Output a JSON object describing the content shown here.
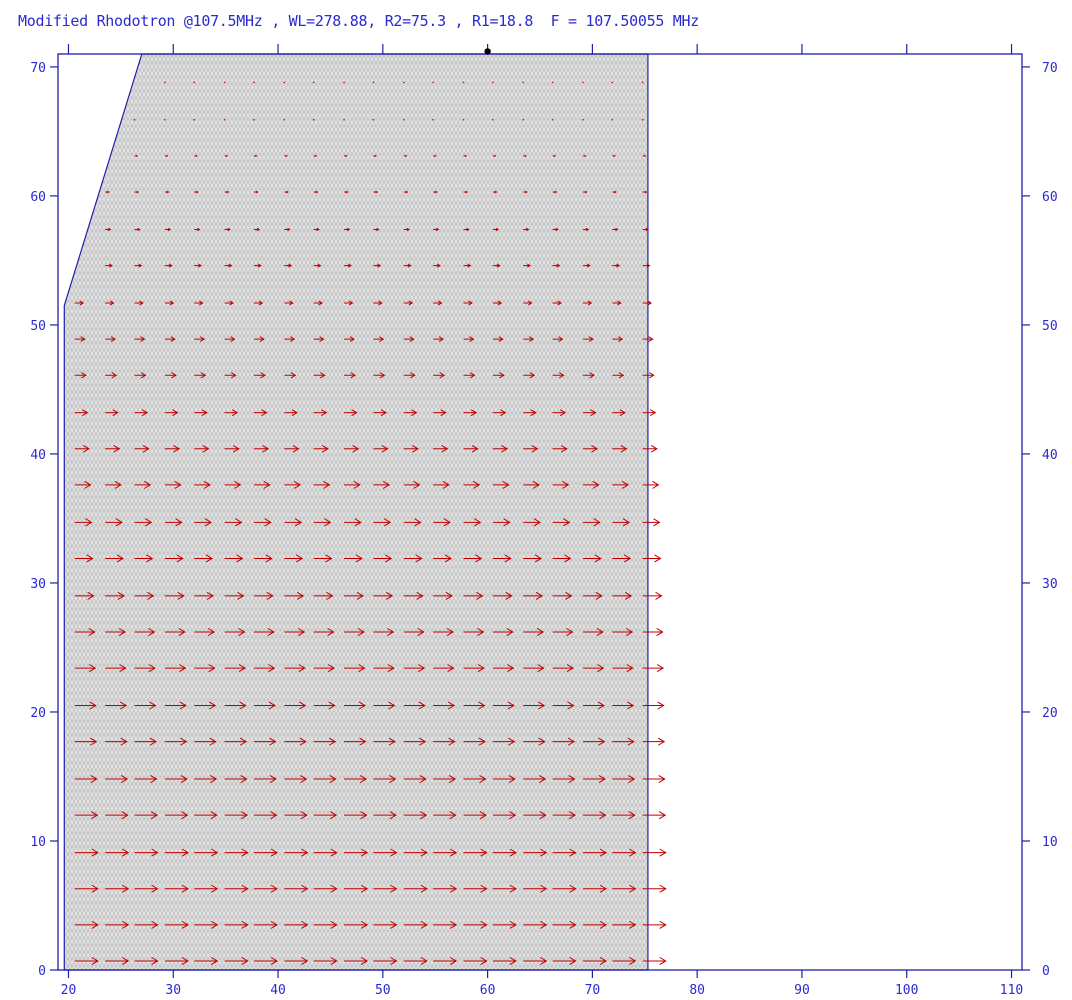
{
  "chart_data": {
    "type": "vector-field",
    "title": "Modified Rhodotron @107.5MHz , WL=278.88, R2=75.3 , R1=18.8  F = 107.50055 MHz",
    "xlabel": "",
    "ylabel": "",
    "xlim": [
      19,
      111
    ],
    "ylim": [
      0,
      71
    ],
    "x_ticks": [
      20,
      30,
      40,
      50,
      60,
      70,
      80,
      90,
      100,
      110
    ],
    "y_ticks": [
      0,
      10,
      20,
      30,
      40,
      50,
      60,
      70
    ],
    "domain_outline": [
      [
        19.6,
        0
      ],
      [
        75.3,
        0
      ],
      [
        75.3,
        71
      ],
      [
        27.0,
        71
      ],
      [
        19.6,
        51.5
      ]
    ],
    "marker_point": [
      60,
      71.2
    ],
    "field_rows": [
      {
        "y": 0.7,
        "max_length": 2.2
      },
      {
        "y": 3.5,
        "max_length": 2.2
      },
      {
        "y": 6.3,
        "max_length": 2.2
      },
      {
        "y": 9.1,
        "max_length": 2.2
      },
      {
        "y": 12.0,
        "max_length": 2.15
      },
      {
        "y": 14.8,
        "max_length": 2.1
      },
      {
        "y": 17.7,
        "max_length": 2.05
      },
      {
        "y": 20.5,
        "max_length": 2.0
      },
      {
        "y": 23.4,
        "max_length": 1.95
      },
      {
        "y": 26.2,
        "max_length": 1.9
      },
      {
        "y": 29.0,
        "max_length": 1.8
      },
      {
        "y": 31.9,
        "max_length": 1.7
      },
      {
        "y": 34.7,
        "max_length": 1.6
      },
      {
        "y": 37.6,
        "max_length": 1.5
      },
      {
        "y": 40.4,
        "max_length": 1.35
      },
      {
        "y": 43.2,
        "max_length": 1.2
      },
      {
        "y": 46.1,
        "max_length": 1.05
      },
      {
        "y": 48.9,
        "max_length": 0.95
      },
      {
        "y": 51.7,
        "max_length": 0.8
      },
      {
        "y": 54.6,
        "max_length": 0.65
      },
      {
        "y": 57.4,
        "max_length": 0.5
      },
      {
        "y": 60.3,
        "max_length": 0.35
      },
      {
        "y": 63.1,
        "max_length": 0.25
      },
      {
        "y": 65.9,
        "max_length": 0.15
      },
      {
        "y": 68.8,
        "max_length": 0.05
      }
    ],
    "field_x": [
      20.6,
      23.5,
      26.3,
      29.2,
      32.0,
      34.9,
      37.7,
      40.6,
      43.4,
      46.3,
      49.1,
      52.0,
      54.8,
      57.7,
      60.5,
      63.4,
      66.2,
      69.1,
      71.9,
      74.8
    ],
    "colors": {
      "axis": "#1f1fa8",
      "tick_label": "#2a2ad0",
      "mesh": "#b8b8b8",
      "mesh_fill": "#e4e4e4",
      "arrow": "#c00000"
    },
    "grid": false
  }
}
